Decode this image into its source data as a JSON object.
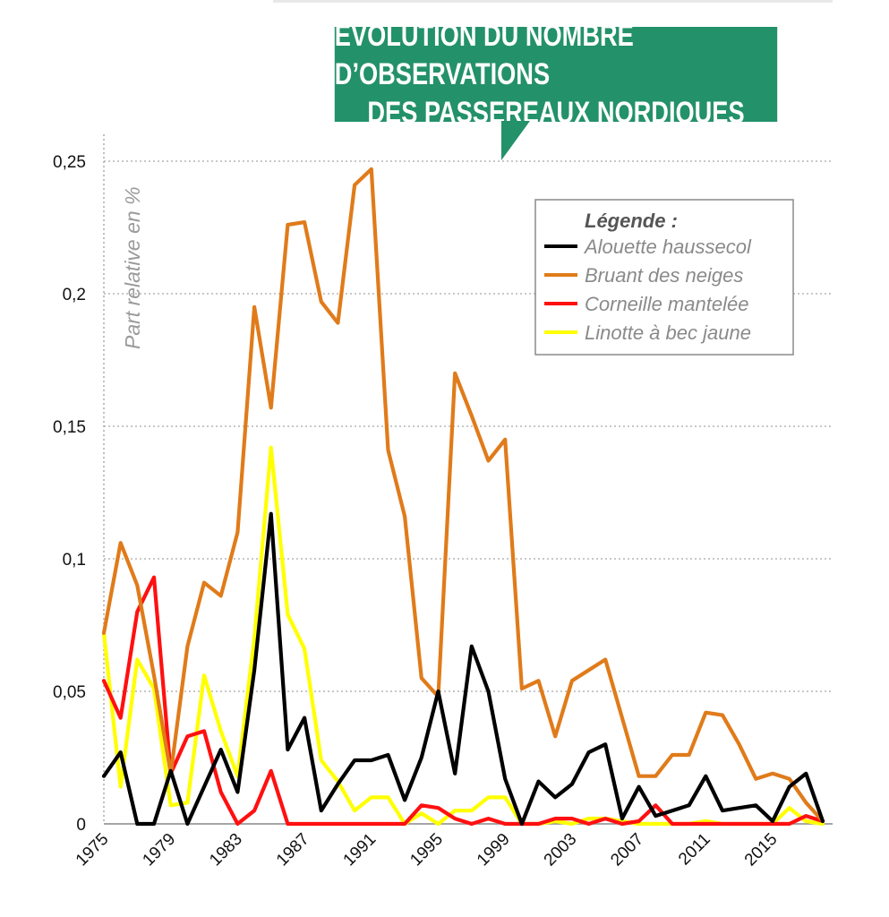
{
  "chart_data": {
    "type": "line",
    "title_lines": [
      "ÉVOLUTION DU NOMBRE D’OBSERVATIONS",
      "DES PASSEREAUX NORDIQUES"
    ],
    "ylabel": "Part relative en %",
    "xlabel": "",
    "legend_title": "Légende :",
    "legend_placement": "top-right",
    "ylim": [
      0,
      0.25
    ],
    "yticks": [
      0,
      0.05,
      0.1,
      0.15,
      0.2,
      0.25
    ],
    "ytick_labels": [
      "0",
      "0,05",
      "0,1",
      "0,15",
      "0,2",
      "0,25"
    ],
    "xticks": [
      1975,
      1979,
      1983,
      1987,
      1991,
      1995,
      1999,
      2003,
      2007,
      2011,
      2015
    ],
    "x_start": 1975,
    "x_end": 2018,
    "grid": true,
    "x": [
      1975,
      1976,
      1977,
      1978,
      1979,
      1980,
      1981,
      1982,
      1983,
      1984,
      1985,
      1986,
      1987,
      1988,
      1989,
      1990,
      1991,
      1992,
      1993,
      1994,
      1995,
      1996,
      1997,
      1998,
      1999,
      2000,
      2001,
      2002,
      2003,
      2004,
      2005,
      2006,
      2007,
      2008,
      2009,
      2010,
      2011,
      2012,
      2013,
      2014,
      2015,
      2016,
      2017,
      2018
    ],
    "series": [
      {
        "name": "Alouette haussecol",
        "color": "#000000",
        "values": [
          0.018,
          0.027,
          0,
          0,
          0.02,
          0,
          0.014,
          0.028,
          0.012,
          0.058,
          0.117,
          0.028,
          0.04,
          0.005,
          0.015,
          0.024,
          0.024,
          0.026,
          0.009,
          0.025,
          0.05,
          0.019,
          0.067,
          0.05,
          0.017,
          0,
          0.016,
          0.01,
          0.015,
          0.027,
          0.03,
          0.002,
          0.014,
          0.003,
          0.005,
          0.007,
          0.018,
          0.005,
          0.006,
          0.007,
          0.001,
          0.014,
          0.019,
          0.001
        ]
      },
      {
        "name": "Bruant des neiges",
        "color": "#e07b1a",
        "values": [
          0.072,
          0.106,
          0.09,
          0.056,
          0.019,
          0.067,
          0.091,
          0.086,
          0.11,
          0.195,
          0.157,
          0.226,
          0.227,
          0.197,
          0.189,
          0.241,
          0.247,
          0.141,
          0.116,
          0.055,
          0.048,
          0.17,
          0.154,
          0.137,
          0.145,
          0.051,
          0.054,
          0.033,
          0.054,
          0.058,
          0.062,
          0.04,
          0.018,
          0.018,
          0.026,
          0.026,
          0.042,
          0.041,
          0.03,
          0.017,
          0.019,
          0.017,
          0.008,
          0.001
        ]
      },
      {
        "name": "Corneille mantelée",
        "color": "#ff1010",
        "values": [
          0.054,
          0.04,
          0.08,
          0.093,
          0.019,
          0.033,
          0.035,
          0.012,
          0,
          0.005,
          0.02,
          0,
          0,
          0,
          0,
          0,
          0,
          0,
          0,
          0.007,
          0.006,
          0.002,
          0,
          0.002,
          0,
          0,
          0,
          0.002,
          0.002,
          0,
          0.002,
          0,
          0.001,
          0.007,
          0,
          0,
          0,
          0,
          0,
          0,
          0,
          0,
          0.003,
          0.001
        ]
      },
      {
        "name": "Linotte à bec jaune",
        "color": "#ffff00",
        "values": [
          0.072,
          0.014,
          0.062,
          0.051,
          0.007,
          0.008,
          0.056,
          0.035,
          0.018,
          0.07,
          0.142,
          0.079,
          0.066,
          0.024,
          0.016,
          0.005,
          0.01,
          0.01,
          0,
          0.004,
          0,
          0.005,
          0.005,
          0.01,
          0.01,
          0,
          0,
          0.001,
          0,
          0.002,
          0.002,
          0.001,
          0,
          0,
          0,
          0,
          0.001,
          0,
          0,
          0,
          0,
          0.006,
          0.001,
          0
        ]
      }
    ]
  }
}
